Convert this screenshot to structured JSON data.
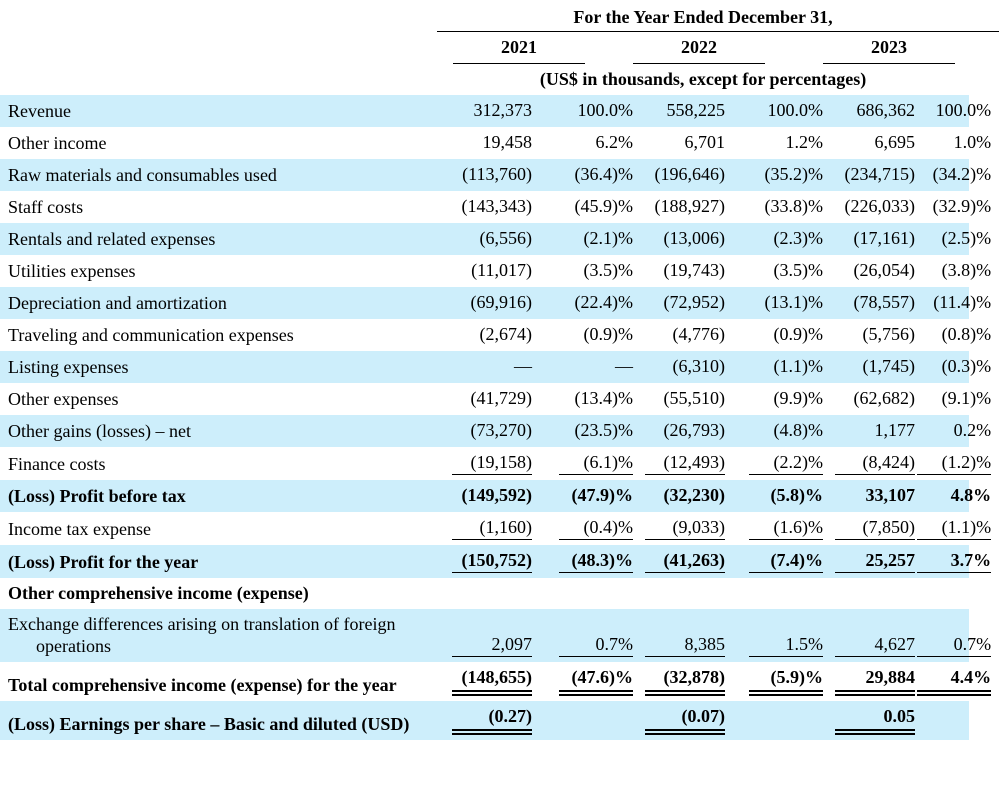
{
  "header": {
    "title": "For the Year Ended December 31,",
    "years": [
      "2021",
      "2022",
      "2023"
    ],
    "subtitle": "(US$ in thousands, except for percentages)"
  },
  "colors": {
    "stripe": "#CDEEFB",
    "text": "#000000",
    "rule": "#000000"
  },
  "rows": [
    {
      "label": "Revenue",
      "values": [
        "312,373",
        "100.0%",
        "558,225",
        "100.0%",
        "686,362",
        "100.0%"
      ],
      "bold": false,
      "stripe": true,
      "underline": "none"
    },
    {
      "label": "Other income",
      "values": [
        "19,458",
        "6.2%",
        "6,701",
        "1.2%",
        "6,695",
        "1.0%"
      ],
      "bold": false,
      "stripe": false,
      "underline": "none"
    },
    {
      "label": "Raw materials and consumables used",
      "values": [
        "(113,760)",
        "(36.4)%",
        "(196,646)",
        "(35.2)%",
        "(234,715)",
        "(34.2)%"
      ],
      "bold": false,
      "stripe": true,
      "underline": "none"
    },
    {
      "label": "Staff costs",
      "values": [
        "(143,343)",
        "(45.9)%",
        "(188,927)",
        "(33.8)%",
        "(226,033)",
        "(32.9)%"
      ],
      "bold": false,
      "stripe": false,
      "underline": "none"
    },
    {
      "label": "Rentals and related expenses",
      "values": [
        "(6,556)",
        "(2.1)%",
        "(13,006)",
        "(2.3)%",
        "(17,161)",
        "(2.5)%"
      ],
      "bold": false,
      "stripe": true,
      "underline": "none"
    },
    {
      "label": "Utilities expenses",
      "values": [
        "(11,017)",
        "(3.5)%",
        "(19,743)",
        "(3.5)%",
        "(26,054)",
        "(3.8)%"
      ],
      "bold": false,
      "stripe": false,
      "underline": "none"
    },
    {
      "label": "Depreciation and amortization",
      "values": [
        "(69,916)",
        "(22.4)%",
        "(72,952)",
        "(13.1)%",
        "(78,557)",
        "(11.4)%"
      ],
      "bold": false,
      "stripe": true,
      "underline": "none"
    },
    {
      "label": "Traveling and communication expenses",
      "values": [
        "(2,674)",
        "(0.9)%",
        "(4,776)",
        "(0.9)%",
        "(5,756)",
        "(0.8)%"
      ],
      "bold": false,
      "stripe": false,
      "underline": "none"
    },
    {
      "label": "Listing expenses",
      "values": [
        "—",
        "—",
        "(6,310)",
        "(1.1)%",
        "(1,745)",
        "(0.3)%"
      ],
      "bold": false,
      "stripe": true,
      "underline": "none"
    },
    {
      "label": "Other expenses",
      "values": [
        "(41,729)",
        "(13.4)%",
        "(55,510)",
        "(9.9)%",
        "(62,682)",
        "(9.1)%"
      ],
      "bold": false,
      "stripe": false,
      "underline": "none"
    },
    {
      "label": "Other gains (losses) – net",
      "values": [
        "(73,270)",
        "(23.5)%",
        "(26,793)",
        "(4.8)%",
        "1,177",
        "0.2%"
      ],
      "bold": false,
      "stripe": true,
      "underline": "none"
    },
    {
      "label": "Finance costs",
      "values": [
        "(19,158)",
        "(6.1)%",
        "(12,493)",
        "(2.2)%",
        "(8,424)",
        "(1.2)%"
      ],
      "bold": false,
      "stripe": false,
      "underline": "single"
    },
    {
      "label": "(Loss) Profit before tax",
      "values": [
        "(149,592)",
        "(47.9)%",
        "(32,230)",
        "(5.8)%",
        "33,107",
        "4.8%"
      ],
      "bold": true,
      "stripe": true,
      "underline": "none"
    },
    {
      "label": "Income tax expense",
      "values": [
        "(1,160)",
        "(0.4)%",
        "(9,033)",
        "(1.6)%",
        "(7,850)",
        "(1.1)%"
      ],
      "bold": false,
      "stripe": false,
      "underline": "single"
    },
    {
      "label": "(Loss) Profit for the year",
      "values": [
        "(150,752)",
        "(48.3)%",
        "(41,263)",
        "(7.4)%",
        "25,257",
        "3.7%"
      ],
      "bold": true,
      "stripe": true,
      "underline": "single"
    },
    {
      "label": "Other comprehensive income (expense)",
      "values": [
        "",
        "",
        "",
        "",
        "",
        ""
      ],
      "bold": true,
      "stripe": false,
      "underline": "none"
    },
    {
      "label": "Exchange differences arising on translation of foreign operations",
      "values": [
        "2,097",
        "0.7%",
        "8,385",
        "1.5%",
        "4,627",
        "0.7%"
      ],
      "bold": false,
      "stripe": true,
      "underline": "single"
    },
    {
      "label": "Total comprehensive income (expense) for the year",
      "values": [
        "(148,655)",
        "(47.6)%",
        "(32,878)",
        "(5.9)%",
        "29,884",
        "4.4%"
      ],
      "bold": true,
      "stripe": false,
      "underline": "double"
    },
    {
      "label": "(Loss) Earnings per share – Basic and diluted (USD)",
      "values": [
        "(0.27)",
        "",
        "(0.07)",
        "",
        "0.05",
        ""
      ],
      "bold": true,
      "stripe": true,
      "underline": "double"
    }
  ]
}
